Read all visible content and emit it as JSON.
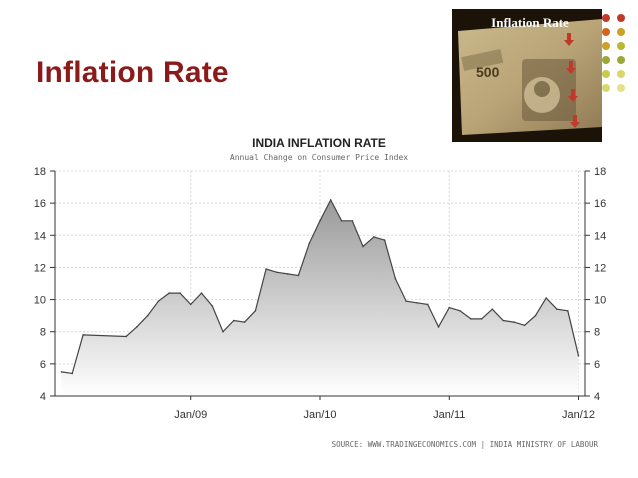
{
  "slide": {
    "title": "Inflation Rate",
    "image_caption": "Inflation Rate",
    "note_value": "500"
  },
  "colors": {
    "title": "#8b1a1a",
    "dots": [
      "#c0392b",
      "#d4641c",
      "#c9a227",
      "#b8b833",
      "#9aa83a",
      "#c9c94a",
      "#d8d86a",
      "#e3e38a"
    ],
    "line": "#444444",
    "fill_top": "#9a9a9a",
    "fill_bottom": "#ffffff"
  },
  "chart_data": {
    "type": "area",
    "title": "INDIA INFLATION RATE",
    "subtitle": "Annual Change on Consumer Price Index",
    "source": "SOURCE: WWW.TRADINGECONOMICS.COM | INDIA MINISTRY OF LABOUR",
    "xlabel": "",
    "ylabel": "",
    "ylim": [
      4,
      18
    ],
    "y_ticks": [
      4,
      6,
      8,
      10,
      12,
      14,
      16,
      18
    ],
    "x_ticks": [
      "Jan/09",
      "Jan/10",
      "Jan/11",
      "Jan/12"
    ],
    "x_tick_positions": [
      2009.0,
      2010.0,
      2011.0,
      2012.0
    ],
    "grid": true,
    "right_axis": true,
    "series": [
      {
        "x": [
          2008.0,
          2008.083,
          2008.167,
          2008.5,
          2008.583,
          2008.667,
          2008.75,
          2008.833,
          2008.917,
          2009.0,
          2009.083,
          2009.167,
          2009.25,
          2009.333,
          2009.417,
          2009.5,
          2009.583,
          2009.667,
          2009.75,
          2009.833,
          2009.917,
          2010.0,
          2010.083,
          2010.167,
          2010.25,
          2010.333,
          2010.417,
          2010.5,
          2010.583,
          2010.667,
          2010.75,
          2010.833,
          2010.917,
          2011.0,
          2011.083,
          2011.167,
          2011.25,
          2011.333,
          2011.417,
          2011.5,
          2011.583,
          2011.667,
          2011.75,
          2011.833,
          2011.917,
          2012.0
        ],
        "values": [
          5.5,
          5.4,
          7.8,
          7.7,
          8.3,
          9.0,
          9.9,
          10.4,
          10.4,
          9.7,
          10.4,
          9.6,
          8.0,
          8.7,
          8.6,
          9.3,
          11.9,
          11.7,
          11.6,
          11.5,
          13.5,
          14.9,
          16.2,
          14.9,
          14.9,
          13.3,
          13.9,
          13.7,
          11.3,
          9.9,
          9.8,
          9.7,
          8.3,
          9.5,
          9.3,
          8.8,
          8.8,
          9.4,
          8.7,
          8.6,
          8.4,
          9.0,
          10.1,
          9.4,
          9.3,
          6.5
        ]
      }
    ]
  }
}
